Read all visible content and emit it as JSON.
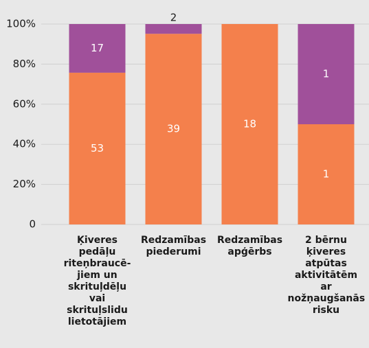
{
  "chart_data": {
    "type": "bar",
    "stacking": "percent",
    "categories": [
      "Ķiveres\npedāļu\nriteņbraucē-\njiem un\nskrituļdēļu\nvai\nskrituļslidu\nlietotājiem",
      "Redzamības\npiederumi",
      "Redzamības\napģērbs",
      "2 bērnu\nķiveres\natpūtas\naktivitātēm\nar\nnožņaugšanās\nrisku"
    ],
    "series": [
      {
        "color": "#f4804c",
        "values": [
          53,
          39,
          18,
          1
        ]
      },
      {
        "color": "#a0509a",
        "values": [
          17,
          2,
          0,
          1
        ]
      }
    ],
    "ylim": [
      0,
      100
    ],
    "yticks": [
      0,
      {
        "value": 20,
        "label": "20%"
      },
      {
        "value": 40,
        "label": "40%"
      },
      {
        "value": 60,
        "label": "60%"
      },
      {
        "value": 80,
        "label": "80%"
      },
      {
        "value": 100,
        "label": "100%"
      }
    ],
    "grid": true
  }
}
